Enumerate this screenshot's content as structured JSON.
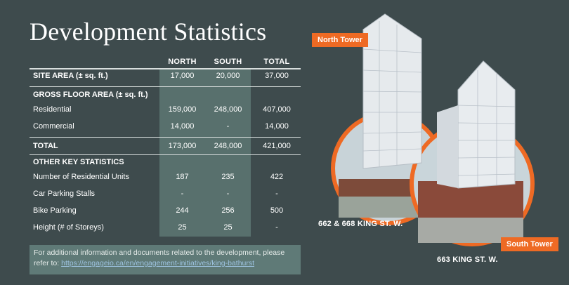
{
  "title": "Development Statistics",
  "columns": {
    "north": "NORTH",
    "south": "SOUTH",
    "total": "TOTAL"
  },
  "rows": {
    "site_area": {
      "label": "SITE AREA (± sq. ft.)",
      "north": "17,000",
      "south": "20,000",
      "total": "37,000"
    },
    "gfa_header": {
      "label": "GROSS FLOOR AREA (± sq. ft.)"
    },
    "residential": {
      "label": "Residential",
      "north": "159,000",
      "south": "248,000",
      "total": "407,000"
    },
    "commercial": {
      "label": "Commercial",
      "north": "14,000",
      "south": "-",
      "total": "14,000"
    },
    "total": {
      "label": "TOTAL",
      "north": "173,000",
      "south": "248,000",
      "total": "421,000"
    },
    "other_header": {
      "label": "OTHER KEY STATISTICS"
    },
    "units": {
      "label": "Number of Residential Units",
      "north": "187",
      "south": "235",
      "total": "422"
    },
    "car": {
      "label": "Car Parking Stalls",
      "north": "-",
      "south": "-",
      "total": "-"
    },
    "bike": {
      "label": "Bike Parking",
      "north": "244",
      "south": "256",
      "total": "500"
    },
    "height": {
      "label": "Height (# of Storeys)",
      "north": "25",
      "south": "25",
      "total": "-"
    }
  },
  "footer": {
    "text": "For additional information and documents related to the development, please refer to:",
    "link": "https://engageio.ca/en/engagement-initiatives/king-bathurst"
  },
  "illustration": {
    "north_badge": "North Tower",
    "south_badge": "South Tower",
    "north_caption": "662 & 668 KING ST. W.",
    "south_caption": "663 KING ST. W."
  },
  "colors": {
    "background": "#3e4b4d",
    "highlight": "#58706d",
    "accent": "#ee6a24"
  }
}
